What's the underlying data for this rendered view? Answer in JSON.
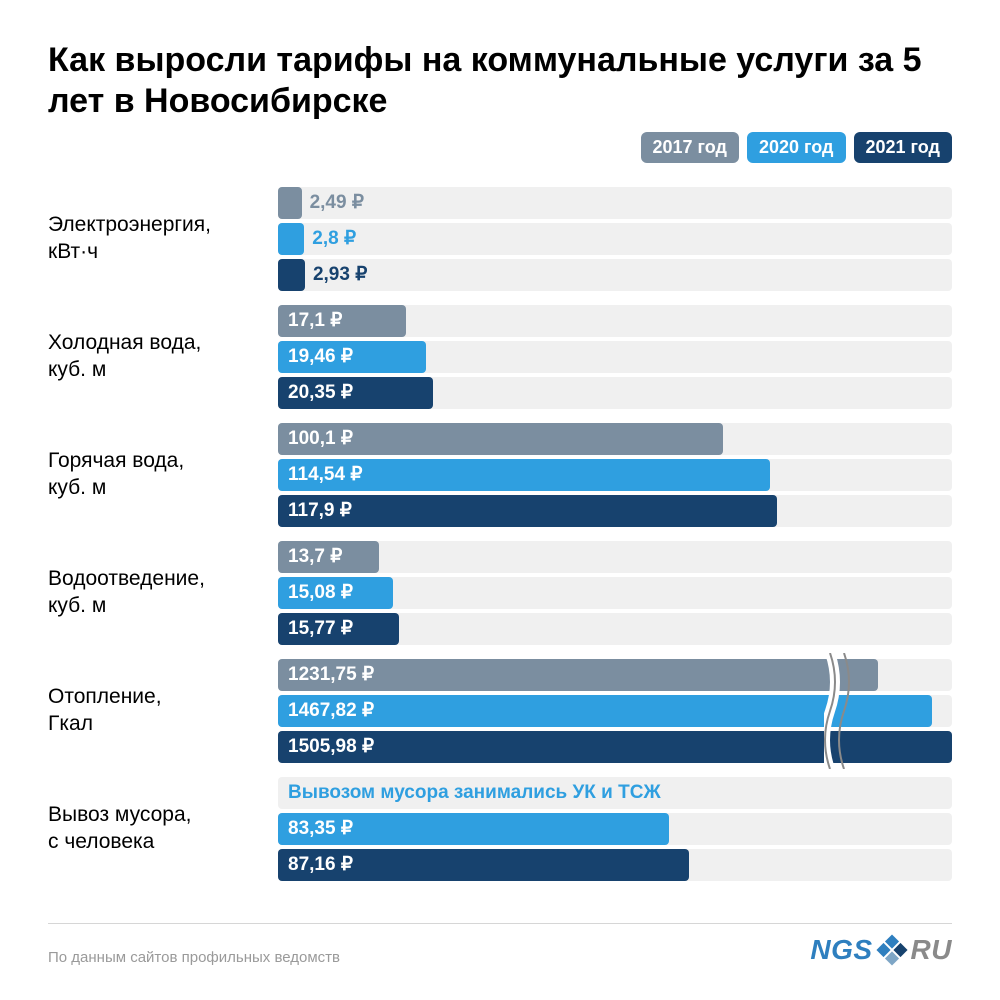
{
  "title": "Как выросли тарифы на коммунальные услуги за 5 лет в Новосибирске",
  "colors": {
    "y2017": "#7b8ea0",
    "y2020": "#2f9fe0",
    "y2021": "#17426e",
    "track": "#f0f0f0"
  },
  "legend": [
    {
      "label": "2017 год",
      "color": "#7b8ea0"
    },
    {
      "label": "2020 год",
      "color": "#2f9fe0"
    },
    {
      "label": "2021 год",
      "color": "#17426e"
    }
  ],
  "currency_suffix": " ₽",
  "groups": [
    {
      "label": "Электроэнергия,\nкВт·ч",
      "bars": [
        {
          "value": "2,49",
          "color": "#7b8ea0",
          "width_pct": 3.5,
          "label_mode": "outside"
        },
        {
          "value": "2,8",
          "color": "#2f9fe0",
          "width_pct": 3.9,
          "label_mode": "outside"
        },
        {
          "value": "2,93",
          "color": "#17426e",
          "width_pct": 4.0,
          "label_mode": "outside"
        }
      ]
    },
    {
      "label": "Холодная вода,\nкуб. м",
      "bars": [
        {
          "value": "17,1",
          "color": "#7b8ea0",
          "width_pct": 19,
          "label_mode": "inside"
        },
        {
          "value": "19,46",
          "color": "#2f9fe0",
          "width_pct": 22,
          "label_mode": "inside"
        },
        {
          "value": "20,35",
          "color": "#17426e",
          "width_pct": 23,
          "label_mode": "inside"
        }
      ]
    },
    {
      "label": "Горячая вода,\nкуб. м",
      "bars": [
        {
          "value": "100,1",
          "color": "#7b8ea0",
          "width_pct": 66,
          "label_mode": "inside"
        },
        {
          "value": "114,54",
          "color": "#2f9fe0",
          "width_pct": 73,
          "label_mode": "inside"
        },
        {
          "value": "117,9",
          "color": "#17426e",
          "width_pct": 74,
          "label_mode": "inside"
        }
      ]
    },
    {
      "label": "Водоотведение,\nкуб. м",
      "bars": [
        {
          "value": "13,7",
          "color": "#7b8ea0",
          "width_pct": 15,
          "label_mode": "inside"
        },
        {
          "value": "15,08",
          "color": "#2f9fe0",
          "width_pct": 17,
          "label_mode": "inside"
        },
        {
          "value": "15,77",
          "color": "#17426e",
          "width_pct": 18,
          "label_mode": "inside"
        }
      ]
    },
    {
      "label": "Отопление,\nГкал",
      "axis_break_pct": 83,
      "bars": [
        {
          "value": "1231,75",
          "color": "#7b8ea0",
          "width_pct": 89,
          "label_mode": "inside"
        },
        {
          "value": "1467,82",
          "color": "#2f9fe0",
          "width_pct": 97,
          "label_mode": "inside"
        },
        {
          "value": "1505,98",
          "color": "#17426e",
          "width_pct": 100,
          "label_mode": "inside"
        }
      ]
    },
    {
      "label": "Вывоз мусора,\nс человека",
      "bars": [
        {
          "note": "Вывозом мусора занимались УК и ТСЖ",
          "color": "#2f9fe0",
          "is_note": true
        },
        {
          "value": "83,35",
          "color": "#2f9fe0",
          "width_pct": 58,
          "label_mode": "inside"
        },
        {
          "value": "87,16",
          "color": "#17426e",
          "width_pct": 61,
          "label_mode": "inside"
        }
      ]
    }
  ],
  "footnote": "По данным сайтов профильных ведомств",
  "logo": {
    "left": "NGS",
    "right": "RU"
  }
}
